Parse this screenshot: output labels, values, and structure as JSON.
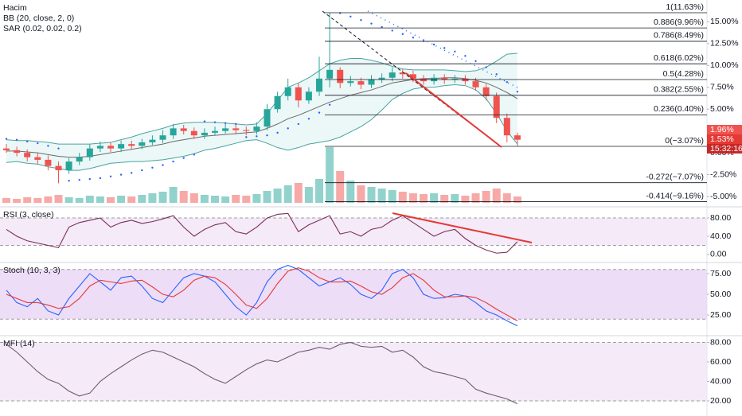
{
  "chart_data": [
    {
      "type": "candlestick",
      "indicator_labels": [
        "Hacim",
        "BB (20, close, 2, 0)",
        "SAR (0.02, 0.02, 0.2)"
      ],
      "open": [
        0.5,
        0.3,
        0,
        -0.5,
        -0.8,
        -1.5,
        -2,
        -1,
        -0.5,
        0.5,
        0.8,
        0.5,
        1,
        0.8,
        1.2,
        1.5,
        2,
        2.8,
        2.5,
        2,
        2.3,
        2.5,
        2.8,
        2.6,
        2.5,
        3,
        5,
        6.5,
        7.5,
        6,
        7,
        8.5,
        9.5,
        8,
        8.2,
        7.8,
        8.4,
        8.6,
        9.2,
        9,
        8.5,
        8.2,
        8.6,
        8.4,
        8.5,
        8.2,
        7.5,
        6.5,
        4,
        2
      ],
      "high": [
        1,
        0.7,
        0.4,
        0,
        -0.3,
        -1,
        -0.6,
        0,
        1,
        1.3,
        1.2,
        1.4,
        1.4,
        1.6,
        2,
        2.6,
        3.3,
        3.2,
        2.9,
        2.8,
        3,
        3.3,
        3.2,
        3,
        3.5,
        5.6,
        7,
        8.5,
        8,
        7.5,
        11,
        16,
        9.8,
        8.8,
        8.6,
        8.9,
        9.1,
        9.8,
        9.6,
        9.4,
        8.9,
        9,
        9,
        8.9,
        8.9,
        8.6,
        7.9,
        6.9,
        4.5,
        2.3
      ],
      "low": [
        0,
        -0.4,
        -1,
        -1.3,
        -2,
        -3.5,
        -2.4,
        -1.4,
        -0.9,
        0.1,
        0.1,
        0.1,
        0.4,
        0.4,
        0.9,
        1.1,
        1.6,
        2.1,
        1.6,
        1.6,
        2,
        2.2,
        2.1,
        2,
        2.1,
        2.6,
        4.6,
        6,
        5.2,
        5.6,
        6.5,
        7.5,
        7.4,
        7.6,
        7.3,
        7.4,
        8,
        8.2,
        8.5,
        8.1,
        7.8,
        7.8,
        7.9,
        8,
        7.8,
        7.1,
        6,
        3.4,
        1.2,
        0.8
      ],
      "close": [
        0.3,
        0,
        -0.5,
        -0.8,
        -1.5,
        -2,
        -1,
        -0.5,
        0.5,
        0.8,
        0.5,
        1,
        0.8,
        1.2,
        1.5,
        2,
        2.8,
        2.5,
        2,
        2.3,
        2.5,
        2.8,
        2.6,
        2.5,
        3,
        5,
        6.5,
        7.5,
        6,
        7,
        8.5,
        9.5,
        8,
        8.2,
        7.8,
        8.4,
        8.6,
        9.2,
        9,
        8.5,
        8.2,
        8.6,
        8.4,
        8.5,
        8.2,
        7.5,
        6.5,
        4,
        2,
        1.5
      ],
      "volume": [
        6,
        5,
        7,
        6,
        8,
        10,
        7,
        6,
        9,
        8,
        7,
        9,
        8,
        10,
        12,
        14,
        20,
        15,
        12,
        10,
        9,
        8,
        10,
        9,
        11,
        15,
        18,
        22,
        25,
        20,
        30,
        70,
        40,
        28,
        22,
        20,
        18,
        16,
        14,
        12,
        11,
        12,
        10,
        11,
        9,
        12,
        15,
        18,
        12,
        8
      ],
      "bb_upper": [
        1.5,
        1.4,
        1.4,
        1.3,
        1.2,
        1,
        1,
        1,
        1,
        1.1,
        1.2,
        1.5,
        1.8,
        2.2,
        2.5,
        2.8,
        3.2,
        3.4,
        3.5,
        3.5,
        3.5,
        3.4,
        3.3,
        3.2,
        3.3,
        4.5,
        6,
        7.5,
        8,
        8.6,
        9.4,
        10.2,
        10.6,
        10.8,
        10.8,
        10.6,
        10.3,
        9.9,
        9.6,
        9.5,
        9.5,
        9.5,
        9.5,
        9.4,
        9.3,
        9.4,
        9.8,
        10.5,
        11.3,
        11.4
      ],
      "bb_mid": [
        0.2,
        0.2,
        0.1,
        0,
        -0.2,
        -0.4,
        -0.5,
        -0.5,
        -0.4,
        -0.2,
        0,
        0.2,
        0.4,
        0.6,
        0.8,
        1,
        1.3,
        1.5,
        1.7,
        1.9,
        2,
        2.1,
        2.2,
        2.3,
        2.4,
        2.8,
        3.3,
        3.9,
        4.3,
        4.8,
        5.3,
        5.8,
        6.2,
        6.6,
        6.9,
        7.2,
        7.6,
        8,
        8.2,
        8.4,
        8.5,
        8.5,
        8.6,
        8.6,
        8.5,
        8.3,
        8,
        7.5,
        6.9,
        6.2
      ],
      "bb_lower": [
        -1.1,
        -1,
        -1.2,
        -1.3,
        -1.6,
        -1.8,
        -2,
        -2,
        -1.8,
        -1.5,
        -1.2,
        -1.1,
        -1,
        -1,
        -0.9,
        -0.8,
        -0.6,
        -0.4,
        -0.1,
        0.3,
        0.5,
        0.8,
        1.1,
        1.4,
        1.5,
        1.1,
        0.6,
        0.3,
        0.6,
        1,
        1.2,
        1.4,
        1.8,
        2.4,
        3,
        3.8,
        4.9,
        6.1,
        6.8,
        7.3,
        7.5,
        7.5,
        7.7,
        7.8,
        7.7,
        7.2,
        6.2,
        4.5,
        2.5,
        1
      ],
      "sar": [
        1.6,
        1.5,
        1.3,
        1.1,
        0.8,
        0.5,
        -3.2,
        -3.1,
        -3,
        -2.9,
        -2.7,
        -2.5,
        -2.3,
        -2,
        -1.7,
        -1.4,
        -1,
        -0.6,
        -0.2,
        3.6,
        3.5,
        3.4,
        3.3,
        1.8,
        1.9,
        2,
        2.3,
        2.8,
        3.3,
        3.9,
        4.6,
        5.5,
        16,
        15.6,
        15.2,
        14.8,
        14.4,
        14,
        13.6,
        13.2,
        12.8,
        12.4,
        12,
        11.6,
        11.1,
        10.5,
        9.8,
        9,
        8.1,
        7
      ],
      "up_color": "#26a69a",
      "down_color": "#ef5350",
      "ylim": [
        -6,
        17.5
      ],
      "yticks": [
        {
          "value": 15,
          "label": "15.00%"
        },
        {
          "value": 12.5,
          "label": "12.50%"
        },
        {
          "value": 10,
          "label": "10.00%"
        },
        {
          "value": 7.5,
          "label": "7.50%"
        },
        {
          "value": 5,
          "label": "5.00%"
        },
        {
          "value": 0,
          "label": "0.00%"
        },
        {
          "value": -2.5,
          "label": "-2.50%"
        },
        {
          "value": -5,
          "label": "-5.00%"
        }
      ],
      "fib": [
        {
          "level": 1,
          "label": "1(11.63%)"
        },
        {
          "level": 0.886,
          "label": "0.886(9.96%)"
        },
        {
          "level": 0.786,
          "label": "0.786(8.49%)"
        },
        {
          "level": 0.618,
          "label": "0.618(6.02%)"
        },
        {
          "level": 0.5,
          "label": "0.5(4.28%)"
        },
        {
          "level": 0.382,
          "label": "0.382(2.55%)"
        },
        {
          "level": 0.236,
          "label": "0.236(0.40%)"
        },
        {
          "level": 0,
          "label": "0(−3.07%)"
        },
        {
          "level": -0.272,
          "label": "-0.272(−7.07%)"
        },
        {
          "level": -0.414,
          "label": "-0.414(−9.16%)"
        }
      ],
      "badges": [
        "1.96%",
        "1.53%",
        "15:32:16"
      ]
    },
    {
      "type": "line",
      "title": "RSI (3, close)",
      "ylim": [
        -14,
        101
      ],
      "yticks": [
        {
          "value": 80,
          "label": "80.00"
        },
        {
          "value": 40,
          "label": "40.00"
        },
        {
          "value": 0,
          "label": "0.00"
        }
      ],
      "bands": [
        80,
        20
      ],
      "band_color": "#f3e5f5",
      "series": [
        {
          "color": "#7b2d5a",
          "values": [
            55,
            40,
            30,
            25,
            20,
            15,
            60,
            70,
            75,
            80,
            60,
            70,
            75,
            68,
            72,
            78,
            85,
            60,
            40,
            55,
            65,
            70,
            50,
            45,
            60,
            80,
            88,
            90,
            50,
            65,
            75,
            85,
            45,
            50,
            40,
            55,
            60,
            75,
            85,
            70,
            55,
            40,
            50,
            55,
            35,
            20,
            10,
            3,
            5,
            28
          ]
        }
      ]
    },
    {
      "type": "line",
      "title": "Stoch (10, 3, 3)",
      "ylim": [
        2,
        86.5
      ],
      "yticks": [
        {
          "value": 75,
          "label": "75.00"
        },
        {
          "value": 50,
          "label": "50.00"
        },
        {
          "value": 25,
          "label": "25.00"
        }
      ],
      "bands": [
        80,
        20
      ],
      "band_color": "#e8d5f5",
      "series": [
        {
          "color": "#2962ff",
          "values": [
            55,
            40,
            35,
            45,
            30,
            25,
            45,
            60,
            75,
            65,
            55,
            70,
            72,
            60,
            45,
            40,
            55,
            70,
            75,
            72,
            65,
            50,
            35,
            25,
            40,
            65,
            80,
            85,
            80,
            70,
            60,
            65,
            70,
            62,
            50,
            45,
            55,
            75,
            80,
            70,
            50,
            45,
            46,
            50,
            48,
            40,
            30,
            25,
            18,
            12
          ]
        },
        {
          "color": "#e53935",
          "values": [
            50,
            45,
            40,
            40,
            37,
            33,
            35,
            45,
            60,
            67,
            65,
            63,
            66,
            67,
            59,
            50,
            47,
            55,
            67,
            72,
            70,
            62,
            50,
            37,
            33,
            45,
            63,
            78,
            82,
            78,
            70,
            65,
            65,
            66,
            60,
            53,
            50,
            58,
            70,
            75,
            67,
            55,
            47,
            47,
            48,
            46,
            40,
            32,
            25,
            18
          ]
        }
      ]
    },
    {
      "type": "line",
      "title": "MFI (14)",
      "ylim": [
        11,
        85.3
      ],
      "yticks": [
        {
          "value": 80,
          "label": "80.00"
        },
        {
          "value": 60,
          "label": "60.00"
        },
        {
          "value": 40,
          "label": "40.00"
        },
        {
          "value": 20,
          "label": "20.00"
        }
      ],
      "bands": [
        80,
        20
      ],
      "band_color": "#f3e5f5",
      "series": [
        {
          "color": "#6d5a72",
          "values": [
            78,
            70,
            60,
            50,
            42,
            38,
            30,
            25,
            28,
            40,
            48,
            55,
            62,
            68,
            72,
            70,
            65,
            60,
            55,
            48,
            42,
            38,
            45,
            52,
            58,
            62,
            60,
            65,
            70,
            72,
            75,
            73,
            78,
            80,
            76,
            75,
            76,
            70,
            72,
            65,
            55,
            50,
            48,
            45,
            42,
            32,
            28,
            25,
            22,
            17
          ]
        }
      ]
    }
  ]
}
